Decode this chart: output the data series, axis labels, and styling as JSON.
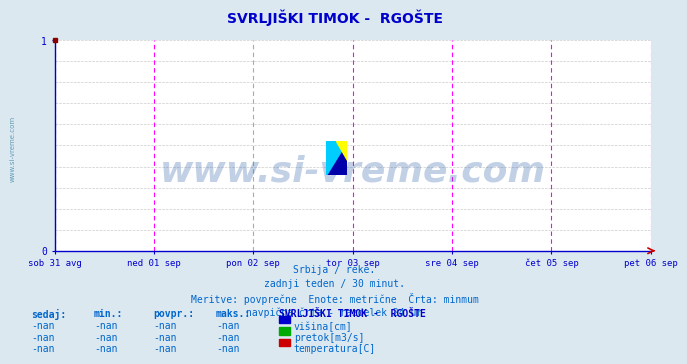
{
  "title": "SVRLJIŠKI TIMOK -  RGOŠTE",
  "title_color": "#0000cc",
  "bg_color": "#dce8f0",
  "plot_bg_color": "#ffffff",
  "xlim": [
    0,
    1
  ],
  "ylim": [
    0,
    1
  ],
  "yticks": [
    0,
    1
  ],
  "xtick_labels": [
    "sob 31 avg",
    "ned 01 sep",
    "pon 02 sep",
    "tor 03 sep",
    "sre 04 sep",
    "čet 05 sep",
    "pet 06 sep"
  ],
  "xtick_positions": [
    0.0,
    0.1667,
    0.3333,
    0.5,
    0.6667,
    0.8333,
    1.0
  ],
  "magenta_vlines": [
    0.0,
    0.1667,
    0.5,
    0.6667,
    0.8333,
    1.0
  ],
  "gray_vlines": [
    0.3333
  ],
  "grid_h_positions": [
    0.1,
    0.2,
    0.3,
    0.4,
    0.5,
    0.6,
    0.7,
    0.8,
    0.9,
    1.0
  ],
  "grid_color": "#cccccc",
  "vline_magenta_color": "#ff00ff",
  "vline_gray_color": "#aaaaaa",
  "axis_color": "#0000cc",
  "tick_color": "#0000cc",
  "watermark": "www.si-vreme.com",
  "watermark_color": "#3366aa",
  "watermark_alpha": 0.3,
  "subtitle_lines": [
    "Srbija / reke.",
    "zadnji teden / 30 minut.",
    "Meritve: povprečne  Enote: metrične  Črta: minmum",
    "navpična črta - razdelek 24 ur"
  ],
  "subtitle_color": "#0066cc",
  "table_header": [
    "sedaj:",
    "min.:",
    "povpr.:",
    "maks.:"
  ],
  "table_rows": [
    [
      "-nan",
      "-nan",
      "-nan",
      "-nan"
    ],
    [
      "-nan",
      "-nan",
      "-nan",
      "-nan"
    ],
    [
      "-nan",
      "-nan",
      "-nan",
      "-nan"
    ]
  ],
  "legend_title": "SVRLJIŠKI TIMOK -  RGOŠTE",
  "legend_items": [
    {
      "label": "višina[cm]",
      "color": "#0000cc"
    },
    {
      "label": "pretok[m3/s]",
      "color": "#00aa00"
    },
    {
      "label": "temperatura[C]",
      "color": "#cc0000"
    }
  ],
  "side_label": "www.si-vreme.com",
  "side_label_color": "#4488aa",
  "logo_colors": {
    "yellow": "#ffff00",
    "cyan": "#00ccff",
    "blue": "#0000aa"
  }
}
